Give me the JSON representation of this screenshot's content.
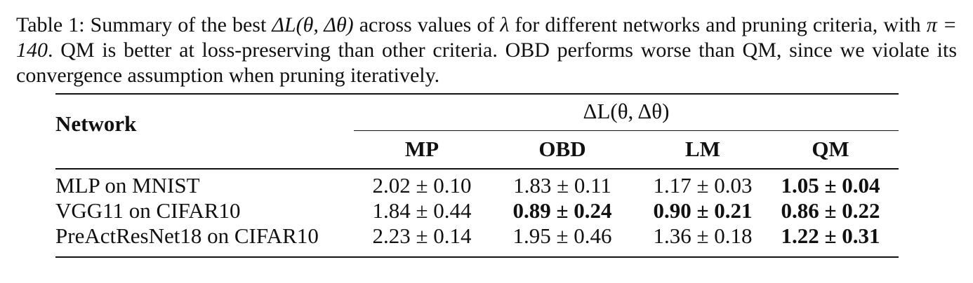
{
  "caption": {
    "label": "Table 1:",
    "text_1": " Summary of the best ",
    "math_1": "ΔL(θ, Δθ)",
    "text_2": " across values of ",
    "math_2": "λ",
    "text_3": " for different networks and pruning criteria, with ",
    "math_3": "π = 140",
    "text_4": ". QM is better at loss-preserving than other criteria. OBD performs worse than QM, since we violate its convergence assumption when pruning iteratively."
  },
  "table": {
    "header_network": "Network",
    "header_group": "ΔL(θ, Δθ)",
    "columns": [
      "MP",
      "OBD",
      "LM",
      "QM"
    ],
    "rows": [
      {
        "network": "MLP on MNIST",
        "values": [
          "2.02 ± 0.10",
          "1.83 ± 0.11",
          "1.17 ± 0.03",
          "1.05 ± 0.04"
        ],
        "bold": [
          false,
          false,
          false,
          true
        ]
      },
      {
        "network": "VGG11 on CIFAR10",
        "values": [
          "1.84 ± 0.44",
          "0.89 ± 0.24",
          "0.90 ± 0.21",
          "0.86 ± 0.22"
        ],
        "bold": [
          false,
          true,
          true,
          true
        ]
      },
      {
        "network": "PreActResNet18 on CIFAR10",
        "values": [
          "2.23 ± 0.14",
          "1.95 ± 0.46",
          "1.36 ± 0.18",
          "1.22 ± 0.31"
        ],
        "bold": [
          false,
          false,
          false,
          true
        ]
      }
    ]
  }
}
